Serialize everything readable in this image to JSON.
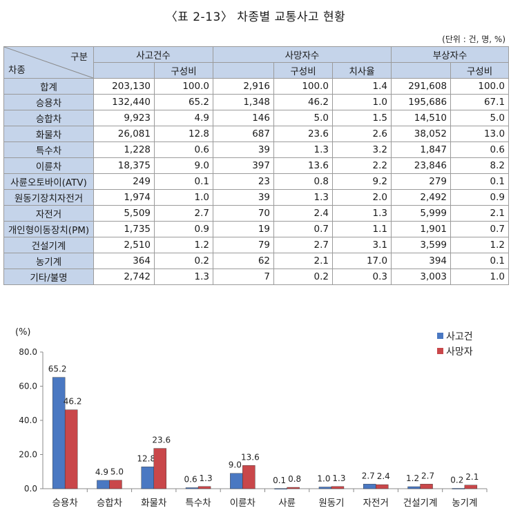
{
  "title": "〈표 2-13〉 차종별 교통사고 현황",
  "unit": "(단위 : 건, 명, %)",
  "table": {
    "corner_top": "구분",
    "corner_bottom": "차종",
    "group_headers": [
      "사고건수",
      "사망자수",
      "부상자수"
    ],
    "sub_headers": [
      "구성비",
      "구성비",
      "치사율",
      "구성비"
    ],
    "rows": [
      {
        "name": "합계",
        "cells": [
          "203,130",
          "100.0",
          "2,916",
          "100.0",
          "1.4",
          "291,608",
          "100.0"
        ]
      },
      {
        "name": "승용차",
        "cells": [
          "132,440",
          "65.2",
          "1,348",
          "46.2",
          "1.0",
          "195,686",
          "67.1"
        ]
      },
      {
        "name": "승합차",
        "cells": [
          "9,923",
          "4.9",
          "146",
          "5.0",
          "1.5",
          "14,510",
          "5.0"
        ]
      },
      {
        "name": "화물차",
        "cells": [
          "26,081",
          "12.8",
          "687",
          "23.6",
          "2.6",
          "38,052",
          "13.0"
        ]
      },
      {
        "name": "특수차",
        "cells": [
          "1,228",
          "0.6",
          "39",
          "1.3",
          "3.2",
          "1,847",
          "0.6"
        ]
      },
      {
        "name": "이륜차",
        "cells": [
          "18,375",
          "9.0",
          "397",
          "13.6",
          "2.2",
          "23,846",
          "8.2"
        ]
      },
      {
        "name": "사륜오토바이(ATV)",
        "cells": [
          "249",
          "0.1",
          "23",
          "0.8",
          "9.2",
          "279",
          "0.1"
        ]
      },
      {
        "name": "원동기장치자전거",
        "cells": [
          "1,974",
          "1.0",
          "39",
          "1.3",
          "2.0",
          "2,492",
          "0.9"
        ]
      },
      {
        "name": "자전거",
        "cells": [
          "5,509",
          "2.7",
          "70",
          "2.4",
          "1.3",
          "5,999",
          "2.1"
        ]
      },
      {
        "name": "개인형이동장치(PM)",
        "cells": [
          "1,735",
          "0.9",
          "19",
          "0.7",
          "1.1",
          "1,901",
          "0.7"
        ]
      },
      {
        "name": "건설기계",
        "cells": [
          "2,510",
          "1.2",
          "79",
          "2.7",
          "3.1",
          "3,599",
          "1.2"
        ]
      },
      {
        "name": "농기계",
        "cells": [
          "364",
          "0.2",
          "62",
          "2.1",
          "17.0",
          "394",
          "0.1"
        ]
      },
      {
        "name": "기타/불명",
        "cells": [
          "2,742",
          "1.3",
          "7",
          "0.2",
          "0.3",
          "3,003",
          "1.0"
        ]
      }
    ]
  },
  "chart_data": {
    "type": "bar",
    "ylabel": "(%)",
    "ylim": [
      0,
      80
    ],
    "yticks": [
      "0.0",
      "20.0",
      "40.0",
      "60.0",
      "80.0"
    ],
    "categories": [
      "승용차",
      "승합차",
      "화물차",
      "특수차",
      "이륜차",
      "사륜",
      "원동기",
      "자전거",
      "건설기계",
      "농기계"
    ],
    "series": [
      {
        "name": "사고건",
        "color": "#4a78c2",
        "values": [
          65.2,
          4.9,
          12.8,
          0.6,
          9.0,
          0.1,
          1.0,
          2.7,
          1.2,
          0.2
        ],
        "labels": [
          "65.2",
          "4.9",
          "12.8",
          "0.6",
          "9.0",
          "0.1",
          "1.0",
          "2.7",
          "1.2",
          "0.2"
        ]
      },
      {
        "name": "사망자",
        "color": "#c9474a",
        "values": [
          46.2,
          5.0,
          23.6,
          1.3,
          13.6,
          0.8,
          1.3,
          2.4,
          2.7,
          2.1
        ],
        "labels": [
          "46.2",
          "5.0",
          "23.6",
          "1.3",
          "13.6",
          "0.8",
          "1.3",
          "2.4",
          "2.7",
          "2.1"
        ]
      }
    ],
    "legend": "top-right",
    "grid": false
  }
}
